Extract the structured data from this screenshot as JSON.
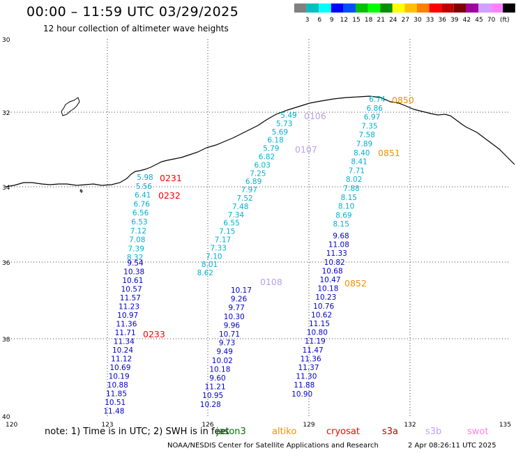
{
  "header": {
    "title": "00:00 – 11:59 UTC 03/29/2025",
    "subtitle": "12 hour collection of altimeter wave heights"
  },
  "color_scale": {
    "swatch_colors": [
      "#808080",
      "#00c0c0",
      "#00ffff",
      "#0000ff",
      "#0050ff",
      "#00c000",
      "#00ff00",
      "#009000",
      "#ffff00",
      "#ffc000",
      "#ff8000",
      "#ff0000",
      "#c00000",
      "#800000",
      "#a000a0",
      "#d0a0ff",
      "#ff80ff",
      "#000000"
    ],
    "labels": [
      "3",
      "6",
      "9",
      "12",
      "15",
      "18",
      "21",
      "24",
      "27",
      "30",
      "33",
      "36",
      "39",
      "42",
      "45",
      "70"
    ],
    "unit": "(ft)"
  },
  "map": {
    "lat_labels": [
      "30",
      "32",
      "34",
      "36",
      "38",
      "40"
    ],
    "lon_labels": [
      "120",
      "123",
      "126",
      "129",
      "132",
      "135"
    ]
  },
  "passes": [
    {
      "color": "#00b0d0",
      "values": [
        "5.98",
        "5.56",
        "6.41",
        "6.76",
        "6.56",
        "6.53",
        "7.12",
        "7.08",
        "7.39",
        "8.32"
      ]
    },
    {
      "color": "#0000cc",
      "values": [
        "9.54",
        "10.38",
        "10.61",
        "10.57",
        "11.57",
        "11.23",
        "10.97",
        "11.36",
        "11.71",
        "11.34",
        "10.24",
        "11.12",
        "10.69",
        "10.19",
        "10.88",
        "11.85",
        "10.51",
        "11.48"
      ]
    },
    {
      "color": "#00b0d0",
      "values": [
        "5.49",
        "5.73",
        "5.69",
        "6.18",
        "5.79",
        "6.82",
        "6.03",
        "7.25",
        "6.89",
        "7.97",
        "7.52",
        "7.48",
        "7.34",
        "6.55",
        "7.15",
        "7.17",
        "7.33",
        "7.10",
        "8.01",
        "8.62"
      ]
    },
    {
      "color": "#0000cc",
      "values": [
        "10.17",
        "9.26",
        "9.77",
        "10.30",
        "9.96",
        "10.71",
        "9.73",
        "9.49",
        "10.02",
        "10.18",
        "9.60",
        "11.21",
        "10.95",
        "10.28"
      ]
    },
    {
      "color": "#00b0d0",
      "values": [
        "6.74",
        "6.86",
        "6.97",
        "7.35",
        "7.58",
        "7.89",
        "8.40",
        "8.41",
        "7.71",
        "8.02",
        "7.88",
        "8.15",
        "8.10",
        "8.69",
        "8.15"
      ]
    },
    {
      "color": "#0000cc",
      "values": [
        "9.68",
        "11.08",
        "11.33",
        "10.82",
        "10.68",
        "10.47",
        "10.18",
        "10.23",
        "10.76",
        "10.62",
        "11.15",
        "10.80",
        "11.19",
        "11.47",
        "11.36",
        "11.37",
        "11.30",
        "11.88",
        "10.90"
      ]
    }
  ],
  "time_tags": [
    {
      "label": "0231",
      "color": "#ff0000"
    },
    {
      "label": "0232",
      "color": "#ff0000"
    },
    {
      "label": "0233",
      "color": "#ff0000"
    },
    {
      "label": "0106",
      "color": "#b8a0e8"
    },
    {
      "label": "0107",
      "color": "#b8a0e8"
    },
    {
      "label": "0108",
      "color": "#b8a0e8"
    },
    {
      "label": "0850",
      "color": "#f09000"
    },
    {
      "label": "0851",
      "color": "#f09000"
    },
    {
      "label": "0852",
      "color": "#f09000"
    }
  ],
  "footer": {
    "note": "note:  1) Time is in UTC;  2) SWH is in feet",
    "satellites": [
      {
        "name": "jason3",
        "color": "#007000"
      },
      {
        "name": "altiko",
        "color": "#f09000"
      },
      {
        "name": "cryosat",
        "color": "#ff0000"
      },
      {
        "name": "s3a",
        "color": "#c00000"
      },
      {
        "name": "s3b",
        "color": "#c0a0f0"
      },
      {
        "name": "swot",
        "color": "#ff80e0"
      }
    ],
    "credit": "NOAA/NESDIS Center for Satellite Applications and Research",
    "timestamp": "2 Apr 08:26:11 UTC 2025"
  }
}
